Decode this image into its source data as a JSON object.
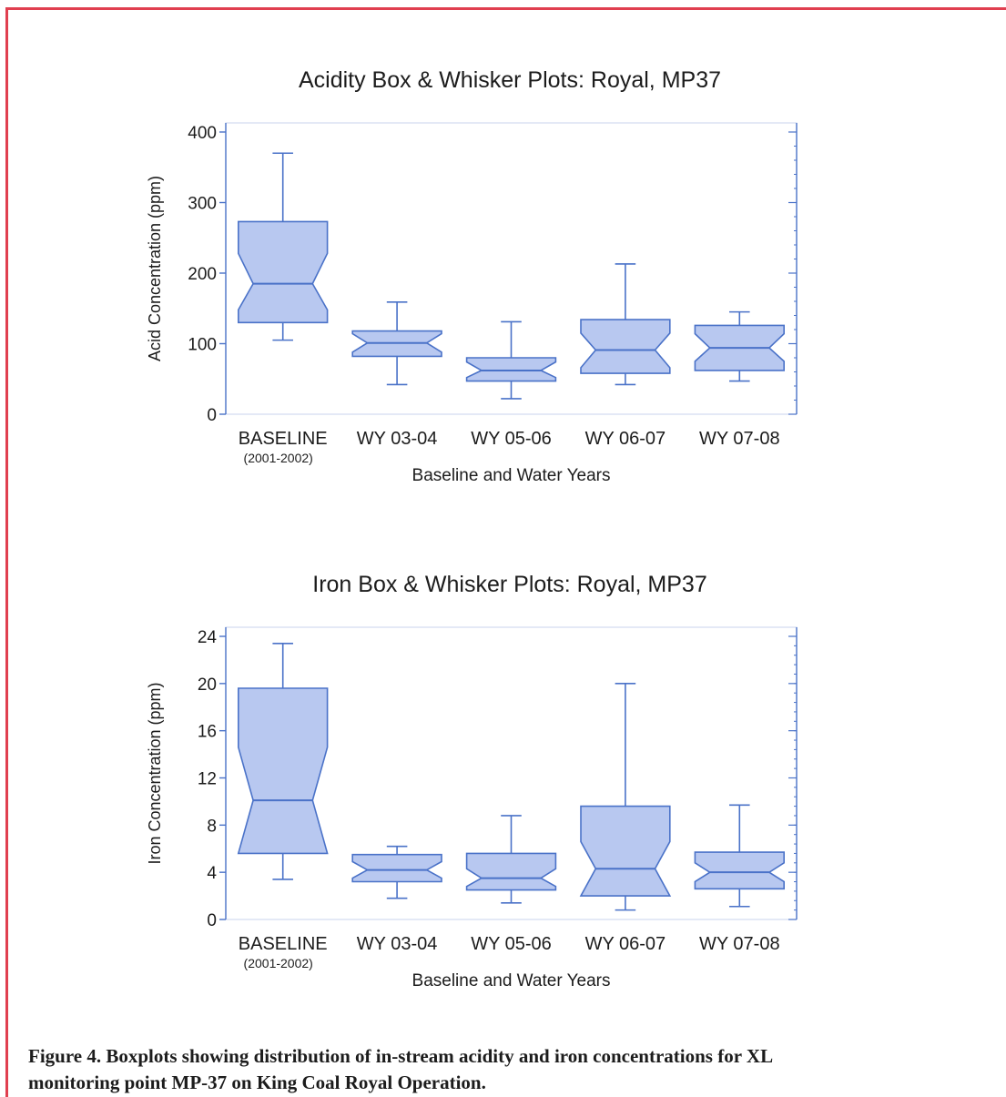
{
  "chart_data": [
    {
      "type": "boxplot",
      "title": "Acidity Box & Whisker Plots:  Royal, MP37",
      "xlabel": "Baseline and Water Years",
      "ylabel": "Acid Concentration (ppm)",
      "ylim": [
        0,
        400
      ],
      "yticks": [
        0,
        100,
        200,
        300,
        400
      ],
      "categories": [
        "BASELINE",
        "WY 03-04",
        "WY 05-06",
        "WY 06-07",
        "WY 07-08"
      ],
      "category_sublabels": [
        "(2001-2002)",
        "",
        "",
        "",
        ""
      ],
      "notched": true,
      "boxes": [
        {
          "category": "BASELINE",
          "min": 105,
          "q1": 130,
          "notch_low": 148,
          "median": 185,
          "notch_high": 228,
          "q3": 273,
          "max": 370
        },
        {
          "category": "WY 03-04",
          "min": 42,
          "q1": 82,
          "notch_low": 88,
          "median": 101,
          "notch_high": 114,
          "q3": 118,
          "max": 159
        },
        {
          "category": "WY 05-06",
          "min": 22,
          "q1": 47,
          "notch_low": 52,
          "median": 62,
          "notch_high": 74,
          "q3": 80,
          "max": 131
        },
        {
          "category": "WY 06-07",
          "min": 42,
          "q1": 58,
          "notch_low": 66,
          "median": 91,
          "notch_high": 115,
          "q3": 134,
          "max": 213
        },
        {
          "category": "WY 07-08",
          "min": 47,
          "q1": 62,
          "notch_low": 75,
          "median": 94,
          "notch_high": 114,
          "q3": 126,
          "max": 145
        }
      ]
    },
    {
      "type": "boxplot",
      "title": "Iron Box & Whisker Plots:  Royal, MP37",
      "xlabel": "Baseline and Water Years",
      "ylabel": "Iron Concentration (ppm)",
      "ylim": [
        0,
        24
      ],
      "yticks": [
        0,
        4,
        8,
        12,
        16,
        20,
        24
      ],
      "categories": [
        "BASELINE",
        "WY 03-04",
        "WY 05-06",
        "WY 06-07",
        "WY 07-08"
      ],
      "category_sublabels": [
        "(2001-2002)",
        "",
        "",
        "",
        ""
      ],
      "notched": true,
      "boxes": [
        {
          "category": "BASELINE",
          "min": 3.4,
          "q1": 5.6,
          "notch_low": 5.6,
          "median": 10.1,
          "notch_high": 14.6,
          "q3": 19.6,
          "max": 23.4
        },
        {
          "category": "WY 03-04",
          "min": 1.8,
          "q1": 3.2,
          "notch_low": 3.5,
          "median": 4.2,
          "notch_high": 4.9,
          "q3": 5.5,
          "max": 6.2
        },
        {
          "category": "WY 05-06",
          "min": 1.4,
          "q1": 2.5,
          "notch_low": 2.8,
          "median": 3.5,
          "notch_high": 4.3,
          "q3": 5.6,
          "max": 8.8
        },
        {
          "category": "WY 06-07",
          "min": 0.8,
          "q1": 2.0,
          "notch_low": 2.0,
          "median": 4.3,
          "notch_high": 6.6,
          "q3": 9.6,
          "max": 20.0
        },
        {
          "category": "WY 07-08",
          "min": 1.1,
          "q1": 2.6,
          "notch_low": 3.2,
          "median": 4.0,
          "notch_high": 4.8,
          "q3": 5.7,
          "max": 9.7
        }
      ]
    }
  ],
  "caption": {
    "line1": "Figure 4.  Boxplots showing distribution of in-stream acidity and iron concentrations for XL",
    "line2": "monitoring point MP-37 on King Coal Royal Operation."
  },
  "colors": {
    "frame": "#e03f4f",
    "box_fill": "#b8c8f0",
    "box_stroke": "#4a72c8",
    "axis": "#4a72c8",
    "text": "#1c1c1c"
  }
}
